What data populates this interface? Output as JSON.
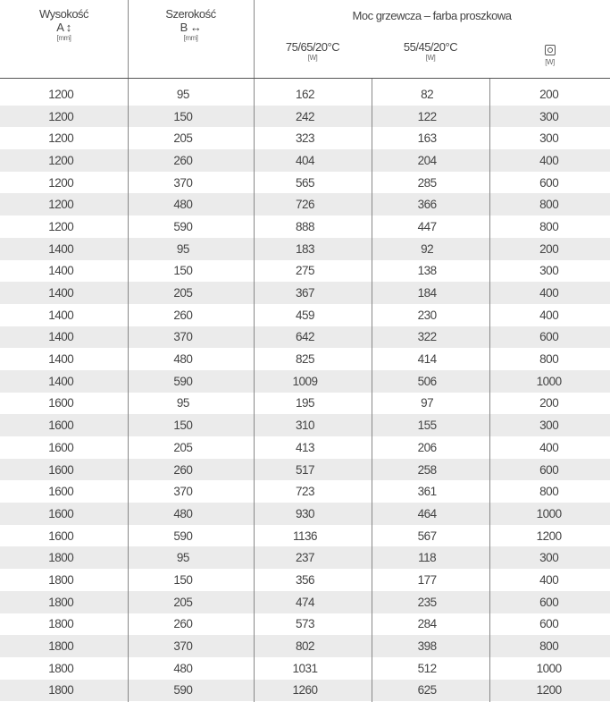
{
  "header": {
    "height": {
      "label": "Wysokość",
      "symbol": "A ↕",
      "unit": "[mm]"
    },
    "width": {
      "label": "Szerokość",
      "symbol": "B ↔",
      "unit": "[mm]"
    },
    "power": {
      "label": "Moc grzewcza – farba proszkowa",
      "cols": [
        {
          "label": "75/65/20°C",
          "unit": "[W]"
        },
        {
          "label": "55/45/20°C",
          "unit": "[W]"
        },
        {
          "icon": "electric-socket-icon",
          "unit": "[W]"
        }
      ]
    }
  },
  "rows": [
    [
      "1200",
      "95",
      "162",
      "82",
      "200"
    ],
    [
      "1200",
      "150",
      "242",
      "122",
      "300"
    ],
    [
      "1200",
      "205",
      "323",
      "163",
      "300"
    ],
    [
      "1200",
      "260",
      "404",
      "204",
      "400"
    ],
    [
      "1200",
      "370",
      "565",
      "285",
      "600"
    ],
    [
      "1200",
      "480",
      "726",
      "366",
      "800"
    ],
    [
      "1200",
      "590",
      "888",
      "447",
      "800"
    ],
    [
      "1400",
      "95",
      "183",
      "92",
      "200"
    ],
    [
      "1400",
      "150",
      "275",
      "138",
      "300"
    ],
    [
      "1400",
      "205",
      "367",
      "184",
      "400"
    ],
    [
      "1400",
      "260",
      "459",
      "230",
      "400"
    ],
    [
      "1400",
      "370",
      "642",
      "322",
      "600"
    ],
    [
      "1400",
      "480",
      "825",
      "414",
      "800"
    ],
    [
      "1400",
      "590",
      "1009",
      "506",
      "1000"
    ],
    [
      "1600",
      "95",
      "195",
      "97",
      "200"
    ],
    [
      "1600",
      "150",
      "310",
      "155",
      "300"
    ],
    [
      "1600",
      "205",
      "413",
      "206",
      "400"
    ],
    [
      "1600",
      "260",
      "517",
      "258",
      "600"
    ],
    [
      "1600",
      "370",
      "723",
      "361",
      "800"
    ],
    [
      "1600",
      "480",
      "930",
      "464",
      "1000"
    ],
    [
      "1600",
      "590",
      "1136",
      "567",
      "1200"
    ],
    [
      "1800",
      "95",
      "237",
      "118",
      "300"
    ],
    [
      "1800",
      "150",
      "356",
      "177",
      "400"
    ],
    [
      "1800",
      "205",
      "474",
      "235",
      "600"
    ],
    [
      "1800",
      "260",
      "573",
      "284",
      "600"
    ],
    [
      "1800",
      "370",
      "802",
      "398",
      "800"
    ],
    [
      "1800",
      "480",
      "1031",
      "512",
      "1000"
    ],
    [
      "1800",
      "590",
      "1260",
      "625",
      "1200"
    ]
  ]
}
